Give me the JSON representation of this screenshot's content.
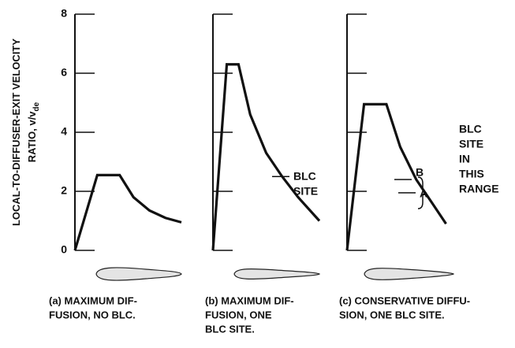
{
  "chart_data": [
    {
      "type": "line",
      "y_label": [
        "LOCAL-TO-DIFFUSER-EXIT VELOCITY",
        "RATIO, v/v"
      ],
      "y_label_sub": "de",
      "x": [
        0,
        0.21,
        0.42,
        0.55,
        0.7,
        0.85,
        1
      ],
      "values": [
        0,
        2.55,
        2.55,
        1.8,
        1.35,
        1.1,
        0.95
      ],
      "ylim": [
        0,
        8
      ],
      "yticks": [
        0,
        2,
        4,
        6,
        8
      ],
      "show_tick_labels": true,
      "color": "#111111",
      "caption": [
        "(a) MAXIMUM DIF-",
        "FUSION, NO BLC."
      ]
    },
    {
      "type": "line",
      "x": [
        0,
        0.13,
        0.24,
        0.35,
        0.5,
        0.65,
        0.8,
        1
      ],
      "values": [
        0,
        6.3,
        6.3,
        4.6,
        3.3,
        2.5,
        1.8,
        1.0
      ],
      "ylim": [
        0,
        8
      ],
      "yticks": [
        0,
        2,
        4,
        6,
        8
      ],
      "show_tick_labels": false,
      "color": "#111111",
      "markers": [
        {
          "value": 2.5
        }
      ],
      "annotation": [
        "BLC",
        "SITE"
      ],
      "caption": [
        "(b) MAXIMUM DIF-",
        "FUSION, ONE",
        "BLC SITE."
      ]
    },
    {
      "type": "line",
      "x": [
        0,
        0.16,
        0.37,
        0.5,
        0.65,
        0.8,
        0.93
      ],
      "values": [
        0,
        4.95,
        4.95,
        3.5,
        2.4,
        1.6,
        0.9
      ],
      "ylim": [
        0,
        8
      ],
      "yticks": [
        0,
        2,
        4,
        6,
        8
      ],
      "show_tick_labels": false,
      "color": "#111111",
      "markers": [
        {
          "label": "B",
          "value": 2.4
        },
        {
          "label": "A",
          "value": 1.95
        }
      ],
      "annotation": [
        "BLC",
        "SITE",
        "IN",
        "THIS",
        "RANGE"
      ],
      "caption": [
        "(c) CONSERVATIVE DIFFU-",
        "SION, ONE BLC SITE."
      ]
    }
  ]
}
